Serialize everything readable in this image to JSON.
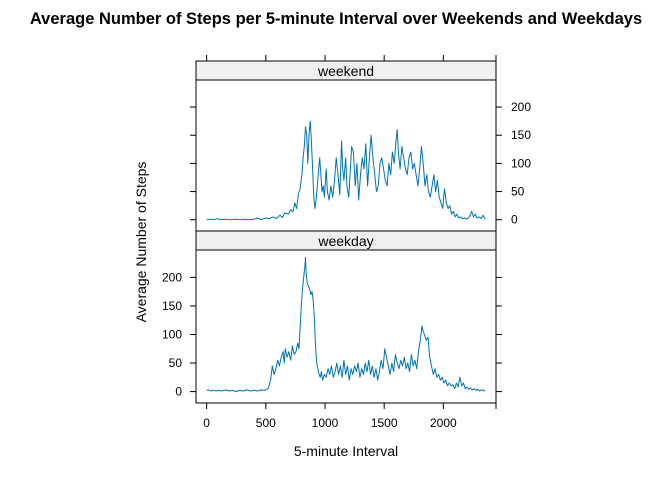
{
  "chart_data": {
    "type": "line",
    "title": "Average Number of Steps per 5-minute Interval over Weekends and Weekdays",
    "xlabel": "5-minute Interval",
    "ylabel": "Average Number of Steps",
    "xlim": [
      -90,
      2445
    ],
    "ylim": [
      -20,
      248
    ],
    "x_ticks": [
      0,
      500,
      1000,
      1500,
      2000
    ],
    "y_ticks": [
      0,
      50,
      100,
      150,
      200
    ],
    "grid": false,
    "series_color": "#0072b2",
    "panels": [
      {
        "name": "weekend",
        "y_axis_side": "right",
        "points": [
          [
            0,
            0
          ],
          [
            30,
            1
          ],
          [
            60,
            0
          ],
          [
            90,
            2
          ],
          [
            120,
            0
          ],
          [
            160,
            1
          ],
          [
            200,
            0
          ],
          [
            240,
            1
          ],
          [
            280,
            0
          ],
          [
            320,
            1
          ],
          [
            360,
            0
          ],
          [
            400,
            1
          ],
          [
            430,
            3
          ],
          [
            460,
            0
          ],
          [
            500,
            3
          ],
          [
            530,
            2
          ],
          [
            560,
            5
          ],
          [
            590,
            2
          ],
          [
            620,
            8
          ],
          [
            640,
            4
          ],
          [
            660,
            12
          ],
          [
            690,
            10
          ],
          [
            710,
            18
          ],
          [
            730,
            14
          ],
          [
            745,
            30
          ],
          [
            760,
            20
          ],
          [
            775,
            45
          ],
          [
            790,
            55
          ],
          [
            805,
            80
          ],
          [
            815,
            110
          ],
          [
            825,
            130
          ],
          [
            835,
            165
          ],
          [
            845,
            150
          ],
          [
            855,
            100
          ],
          [
            865,
            150
          ],
          [
            875,
            175
          ],
          [
            885,
            140
          ],
          [
            895,
            90
          ],
          [
            905,
            40
          ],
          [
            915,
            20
          ],
          [
            925,
            35
          ],
          [
            935,
            60
          ],
          [
            945,
            85
          ],
          [
            955,
            110
          ],
          [
            965,
            80
          ],
          [
            975,
            50
          ],
          [
            985,
            60
          ],
          [
            995,
            40
          ],
          [
            1010,
            90
          ],
          [
            1020,
            50
          ],
          [
            1035,
            35
          ],
          [
            1050,
            60
          ],
          [
            1065,
            40
          ],
          [
            1080,
            70
          ],
          [
            1095,
            110
          ],
          [
            1110,
            80
          ],
          [
            1125,
            45
          ],
          [
            1140,
            140
          ],
          [
            1150,
            90
          ],
          [
            1160,
            70
          ],
          [
            1175,
            110
          ],
          [
            1185,
            60
          ],
          [
            1200,
            40
          ],
          [
            1215,
            90
          ],
          [
            1225,
            130
          ],
          [
            1240,
            120
          ],
          [
            1255,
            60
          ],
          [
            1270,
            100
          ],
          [
            1285,
            35
          ],
          [
            1300,
            80
          ],
          [
            1315,
            110
          ],
          [
            1330,
            90
          ],
          [
            1345,
            135
          ],
          [
            1360,
            60
          ],
          [
            1375,
            110
          ],
          [
            1390,
            150
          ],
          [
            1405,
            110
          ],
          [
            1420,
            80
          ],
          [
            1435,
            50
          ],
          [
            1450,
            60
          ],
          [
            1465,
            100
          ],
          [
            1480,
            110
          ],
          [
            1495,
            90
          ],
          [
            1510,
            70
          ],
          [
            1525,
            60
          ],
          [
            1540,
            100
          ],
          [
            1555,
            80
          ],
          [
            1570,
            120
          ],
          [
            1585,
            100
          ],
          [
            1600,
            140
          ],
          [
            1610,
            160
          ],
          [
            1620,
            120
          ],
          [
            1635,
            90
          ],
          [
            1650,
            130
          ],
          [
            1665,
            110
          ],
          [
            1680,
            90
          ],
          [
            1695,
            80
          ],
          [
            1710,
            110
          ],
          [
            1725,
            120
          ],
          [
            1740,
            90
          ],
          [
            1755,
            100
          ],
          [
            1770,
            80
          ],
          [
            1785,
            60
          ],
          [
            1800,
            90
          ],
          [
            1815,
            130
          ],
          [
            1830,
            100
          ],
          [
            1845,
            60
          ],
          [
            1860,
            80
          ],
          [
            1875,
            50
          ],
          [
            1890,
            40
          ],
          [
            1905,
            60
          ],
          [
            1920,
            80
          ],
          [
            1935,
            50
          ],
          [
            1950,
            70
          ],
          [
            1965,
            40
          ],
          [
            1980,
            30
          ],
          [
            1995,
            20
          ],
          [
            2010,
            55
          ],
          [
            2025,
            30
          ],
          [
            2040,
            20
          ],
          [
            2055,
            25
          ],
          [
            2070,
            10
          ],
          [
            2085,
            15
          ],
          [
            2100,
            5
          ],
          [
            2115,
            10
          ],
          [
            2130,
            3
          ],
          [
            2145,
            5
          ],
          [
            2160,
            2
          ],
          [
            2180,
            3
          ],
          [
            2200,
            1
          ],
          [
            2220,
            5
          ],
          [
            2240,
            15
          ],
          [
            2255,
            5
          ],
          [
            2270,
            10
          ],
          [
            2285,
            3
          ],
          [
            2300,
            5
          ],
          [
            2320,
            2
          ],
          [
            2335,
            8
          ],
          [
            2350,
            2
          ],
          [
            2355,
            1
          ]
        ]
      },
      {
        "name": "weekday",
        "y_axis_side": "left",
        "points": [
          [
            0,
            2
          ],
          [
            20,
            3
          ],
          [
            40,
            1
          ],
          [
            60,
            2
          ],
          [
            80,
            1
          ],
          [
            100,
            2
          ],
          [
            130,
            1
          ],
          [
            160,
            3
          ],
          [
            190,
            1
          ],
          [
            220,
            2
          ],
          [
            250,
            0
          ],
          [
            280,
            2
          ],
          [
            310,
            1
          ],
          [
            340,
            3
          ],
          [
            370,
            1
          ],
          [
            400,
            2
          ],
          [
            430,
            1
          ],
          [
            460,
            3
          ],
          [
            490,
            2
          ],
          [
            520,
            5
          ],
          [
            540,
            20
          ],
          [
            555,
            45
          ],
          [
            570,
            30
          ],
          [
            585,
            40
          ],
          [
            600,
            55
          ],
          [
            615,
            45
          ],
          [
            630,
            60
          ],
          [
            645,
            70
          ],
          [
            655,
            50
          ],
          [
            665,
            75
          ],
          [
            680,
            60
          ],
          [
            695,
            70
          ],
          [
            710,
            55
          ],
          [
            725,
            80
          ],
          [
            740,
            65
          ],
          [
            755,
            70
          ],
          [
            770,
            85
          ],
          [
            780,
            75
          ],
          [
            790,
            110
          ],
          [
            800,
            150
          ],
          [
            810,
            180
          ],
          [
            820,
            200
          ],
          [
            830,
            220
          ],
          [
            835,
            235
          ],
          [
            840,
            210
          ],
          [
            850,
            190
          ],
          [
            860,
            185
          ],
          [
            870,
            180
          ],
          [
            880,
            170
          ],
          [
            890,
            175
          ],
          [
            900,
            160
          ],
          [
            910,
            130
          ],
          [
            920,
            80
          ],
          [
            930,
            50
          ],
          [
            940,
            40
          ],
          [
            950,
            30
          ],
          [
            960,
            25
          ],
          [
            970,
            35
          ],
          [
            980,
            20
          ],
          [
            995,
            30
          ],
          [
            1010,
            25
          ],
          [
            1025,
            40
          ],
          [
            1040,
            30
          ],
          [
            1055,
            45
          ],
          [
            1070,
            25
          ],
          [
            1085,
            35
          ],
          [
            1100,
            50
          ],
          [
            1115,
            30
          ],
          [
            1130,
            45
          ],
          [
            1145,
            25
          ],
          [
            1160,
            55
          ],
          [
            1175,
            30
          ],
          [
            1190,
            45
          ],
          [
            1205,
            20
          ],
          [
            1220,
            40
          ],
          [
            1235,
            30
          ],
          [
            1250,
            45
          ],
          [
            1265,
            35
          ],
          [
            1280,
            50
          ],
          [
            1295,
            25
          ],
          [
            1310,
            40
          ],
          [
            1325,
            30
          ],
          [
            1340,
            50
          ],
          [
            1355,
            35
          ],
          [
            1370,
            55
          ],
          [
            1385,
            30
          ],
          [
            1400,
            45
          ],
          [
            1415,
            25
          ],
          [
            1430,
            40
          ],
          [
            1445,
            20
          ],
          [
            1460,
            35
          ],
          [
            1475,
            55
          ],
          [
            1490,
            40
          ],
          [
            1505,
            75
          ],
          [
            1520,
            60
          ],
          [
            1535,
            45
          ],
          [
            1550,
            30
          ],
          [
            1565,
            50
          ],
          [
            1580,
            35
          ],
          [
            1595,
            65
          ],
          [
            1610,
            50
          ],
          [
            1625,
            40
          ],
          [
            1640,
            55
          ],
          [
            1655,
            45
          ],
          [
            1670,
            60
          ],
          [
            1685,
            40
          ],
          [
            1700,
            50
          ],
          [
            1715,
            35
          ],
          [
            1730,
            65
          ],
          [
            1745,
            45
          ],
          [
            1760,
            55
          ],
          [
            1775,
            40
          ],
          [
            1790,
            70
          ],
          [
            1805,
            90
          ],
          [
            1820,
            115
          ],
          [
            1830,
            105
          ],
          [
            1840,
            100
          ],
          [
            1855,
            90
          ],
          [
            1870,
            95
          ],
          [
            1885,
            60
          ],
          [
            1900,
            45
          ],
          [
            1915,
            30
          ],
          [
            1930,
            40
          ],
          [
            1945,
            25
          ],
          [
            1960,
            30
          ],
          [
            1975,
            20
          ],
          [
            1990,
            25
          ],
          [
            2005,
            15
          ],
          [
            2020,
            20
          ],
          [
            2035,
            10
          ],
          [
            2050,
            15
          ],
          [
            2065,
            10
          ],
          [
            2080,
            12
          ],
          [
            2095,
            5
          ],
          [
            2110,
            15
          ],
          [
            2125,
            8
          ],
          [
            2140,
            25
          ],
          [
            2155,
            10
          ],
          [
            2170,
            15
          ],
          [
            2185,
            5
          ],
          [
            2200,
            8
          ],
          [
            2215,
            4
          ],
          [
            2230,
            6
          ],
          [
            2245,
            3
          ],
          [
            2260,
            5
          ],
          [
            2275,
            2
          ],
          [
            2290,
            4
          ],
          [
            2305,
            1
          ],
          [
            2320,
            3
          ],
          [
            2340,
            2
          ],
          [
            2355,
            1
          ]
        ]
      }
    ]
  }
}
